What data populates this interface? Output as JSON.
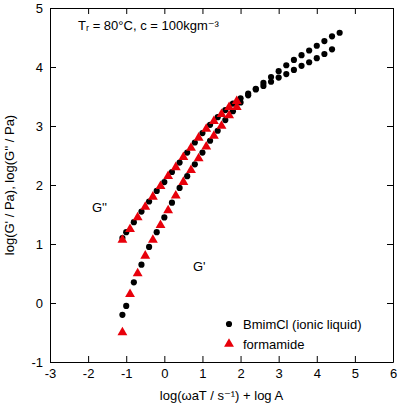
{
  "chart_data": {
    "type": "scatter",
    "annotations": [
      "Tᵣ = 80°C, c = 100kgm⁻³",
      "G''",
      "G'"
    ],
    "x_label": "log(ωaT / s⁻¹) + log A",
    "y_label": "log(G' / Pa), log(G'' / Pa)",
    "xlim": [
      -3,
      6
    ],
    "ylim": [
      -1,
      5
    ],
    "xticks": [
      -3,
      -2,
      -1,
      0,
      1,
      2,
      3,
      4,
      5,
      6
    ],
    "yticks": [
      -1,
      0,
      1,
      2,
      3,
      4,
      5
    ],
    "legend": "lower right",
    "series": [
      {
        "name": "BmimCl (ionic liquid)",
        "color": "#000000",
        "marker": "circle",
        "x": [
          -1.1,
          -1.0,
          -0.8,
          -0.6,
          -0.4,
          -0.2,
          0.0,
          0.2,
          0.4,
          0.6,
          0.8,
          1.0,
          1.2,
          1.4,
          1.6,
          1.8,
          2.0,
          2.2,
          2.4,
          2.6,
          2.8,
          3.0,
          3.2,
          3.4,
          3.6,
          3.8,
          4.0,
          4.2,
          4.4
        ],
        "values": [
          1.1,
          1.2,
          1.37,
          1.55,
          1.72,
          1.9,
          2.05,
          2.22,
          2.38,
          2.55,
          2.72,
          2.88,
          3.02,
          3.15,
          3.27,
          3.38,
          3.47,
          3.55,
          3.62,
          3.68,
          3.75,
          3.82,
          3.88,
          3.95,
          4.02,
          4.08,
          4.15,
          4.22,
          4.3
        ]
      },
      {
        "name": "BmimCl (ionic liquid)",
        "color": "#000000",
        "marker": "circle",
        "x": [
          -1.1,
          -1.0,
          -0.8,
          -0.6,
          -0.4,
          -0.2,
          0.0,
          0.2,
          0.4,
          0.6,
          0.8,
          1.0,
          1.2,
          1.4,
          1.6,
          1.8,
          2.0,
          2.2,
          2.4,
          2.6,
          2.8,
          3.0,
          3.2,
          3.4,
          3.6,
          3.8,
          4.0,
          4.2,
          4.4,
          4.6
        ],
        "values": [
          -0.2,
          -0.05,
          0.35,
          0.65,
          0.95,
          1.2,
          1.45,
          1.7,
          1.95,
          2.15,
          2.35,
          2.55,
          2.75,
          2.92,
          3.1,
          3.25,
          3.4,
          3.52,
          3.63,
          3.73,
          3.83,
          3.93,
          4.03,
          4.12,
          4.2,
          4.28,
          4.36,
          4.44,
          4.52,
          4.58
        ]
      },
      {
        "name": "formamide",
        "color": "#e8000b",
        "marker": "triangle",
        "x": [
          -1.1,
          -0.9,
          -0.7,
          -0.5,
          -0.3,
          -0.1,
          0.1,
          0.3,
          0.5,
          0.7,
          0.9,
          1.1,
          1.3,
          1.5,
          1.7,
          1.9
        ],
        "values": [
          1.07,
          1.25,
          1.45,
          1.63,
          1.8,
          1.98,
          2.15,
          2.3,
          2.47,
          2.63,
          2.8,
          2.95,
          3.08,
          3.2,
          3.32,
          3.42
        ]
      },
      {
        "name": "formamide",
        "color": "#e8000b",
        "marker": "triangle",
        "x": [
          -1.1,
          -0.9,
          -0.7,
          -0.5,
          -0.3,
          -0.1,
          0.1,
          0.3,
          0.5,
          0.7,
          0.9,
          1.1,
          1.3,
          1.5,
          1.7,
          1.9
        ],
        "values": [
          -0.5,
          0.15,
          0.5,
          0.8,
          1.07,
          1.32,
          1.57,
          1.82,
          2.05,
          2.25,
          2.45,
          2.65,
          2.83,
          3.0,
          3.18,
          3.32
        ]
      }
    ]
  }
}
